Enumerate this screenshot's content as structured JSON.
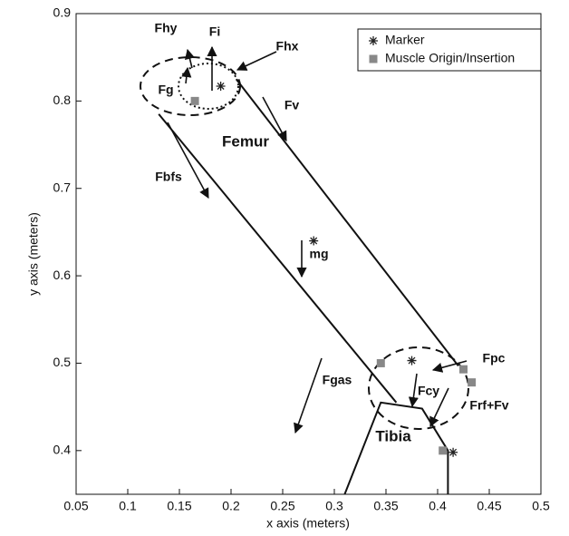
{
  "chart_data": {
    "type": "scatter",
    "xlabel": "x axis (meters)",
    "ylabel": "y axis (meters)",
    "xlim": [
      0.05,
      0.5
    ],
    "ylim": [
      0.35,
      0.9
    ],
    "xticks": [
      0.05,
      0.1,
      0.15,
      0.2,
      0.25,
      0.3,
      0.35,
      0.4,
      0.45,
      0.5
    ],
    "yticks": [
      0.4,
      0.5,
      0.6,
      0.7,
      0.8,
      0.9
    ],
    "legend": "upper right",
    "series": [
      {
        "name": "Marker",
        "color": "#222222",
        "marker": "asterisk",
        "x": [
          0.28,
          0.375,
          0.415,
          0.19
        ],
        "y": [
          0.64,
          0.503,
          0.398,
          0.817
        ]
      },
      {
        "name": "Muscle Origin/Insertion",
        "color": "#888888",
        "marker": "square",
        "x": [
          0.165,
          0.345,
          0.433,
          0.405,
          0.425
        ],
        "y": [
          0.8,
          0.5,
          0.478,
          0.4,
          0.493
        ]
      }
    ],
    "outlines": [
      {
        "x": [
          0.13,
          0.36
        ],
        "y": [
          0.785,
          0.455
        ]
      },
      {
        "x": [
          0.205,
          0.42
        ],
        "y": [
          0.825,
          0.497
        ]
      },
      {
        "x": [
          0.31,
          0.345,
          0.385,
          0.41,
          0.41
        ],
        "y": [
          0.35,
          0.455,
          0.448,
          0.4,
          0.35
        ]
      }
    ],
    "annotations": [
      "Fhy",
      "Fi",
      "Fhx",
      "Fg",
      "Fv",
      "Femur",
      "Fbfs",
      "mg",
      "Fgas",
      "Fcy",
      "Fpc",
      "Frf+Fv",
      "Tibia"
    ]
  }
}
